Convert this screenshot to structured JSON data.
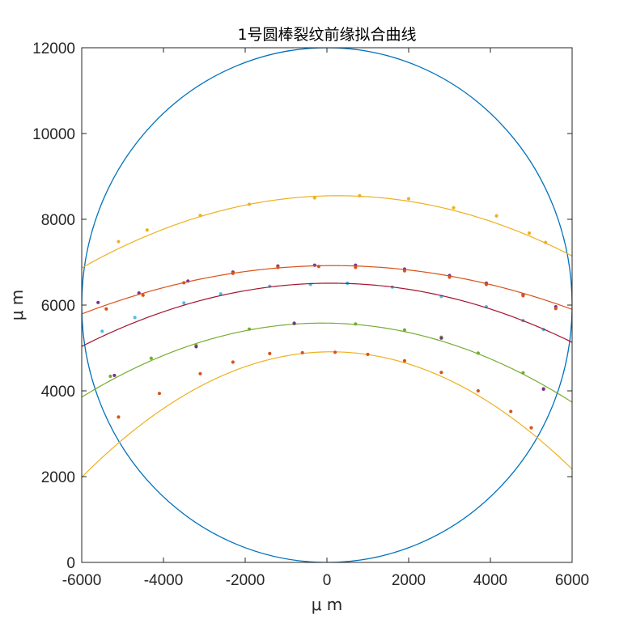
{
  "chart_data": {
    "type": "scatter",
    "title": "1号圆棒裂纹前缘拟合曲线",
    "xlabel": "μ m",
    "ylabel": "μ m",
    "xlim": [
      -6000,
      6000
    ],
    "ylim": [
      0,
      12000
    ],
    "xticks": [
      -6000,
      -4000,
      -2000,
      0,
      2000,
      4000,
      6000
    ],
    "yticks": [
      0,
      2000,
      4000,
      6000,
      8000,
      10000,
      12000
    ],
    "xtick_labels": [
      "-6000",
      "-4000",
      "-2000",
      "0",
      "2000",
      "4000",
      "6000"
    ],
    "ytick_labels": [
      "0",
      "2000",
      "4000",
      "6000",
      "8000",
      "10000",
      "12000"
    ],
    "grid": false,
    "legend": "none",
    "circle": {
      "cx": 0,
      "cy": 6000,
      "r": 6000,
      "color": "#0072BD"
    },
    "series": [
      {
        "color": "#EDB120",
        "curve": {
          "a": -4.28e-05,
          "h": 270,
          "k": 8550,
          "x_min": -6000,
          "x_max": 6000
        },
        "points": [
          [
            -5100,
            7480
          ],
          [
            -4400,
            7750
          ],
          [
            -3100,
            8090
          ],
          [
            -1900,
            8350
          ],
          [
            -300,
            8500
          ],
          [
            800,
            8550
          ],
          [
            2000,
            8480
          ],
          [
            3100,
            8270
          ],
          [
            4150,
            8080
          ],
          [
            4950,
            7680
          ],
          [
            5350,
            7460
          ]
        ]
      },
      {
        "color": "#7E2F8E",
        "points": [
          [
            -5600,
            6060
          ],
          [
            -4600,
            6280
          ],
          [
            -3400,
            6560
          ],
          [
            -2300,
            6770
          ],
          [
            -1200,
            6910
          ],
          [
            -300,
            6930
          ],
          [
            700,
            6930
          ],
          [
            1900,
            6840
          ],
          [
            3000,
            6690
          ],
          [
            3900,
            6510
          ],
          [
            4800,
            6240
          ],
          [
            5600,
            5960
          ]
        ]
      },
      {
        "color": "#D95319",
        "curve": {
          "a": -2.98e-05,
          "h": 150,
          "k": 6920,
          "x_min": -6000,
          "x_max": 6000
        },
        "points": [
          [
            -5400,
            5910
          ],
          [
            -4500,
            6230
          ],
          [
            -3500,
            6520
          ],
          [
            -2300,
            6740
          ],
          [
            -1200,
            6880
          ],
          [
            -200,
            6900
          ],
          [
            700,
            6880
          ],
          [
            1900,
            6800
          ],
          [
            3000,
            6650
          ],
          [
            3900,
            6480
          ],
          [
            4800,
            6220
          ],
          [
            5600,
            5920
          ]
        ]
      },
      {
        "color": "#4DBEEE",
        "points": [
          [
            -5500,
            5390
          ],
          [
            -4700,
            5710
          ],
          [
            -3500,
            6050
          ],
          [
            -2600,
            6260
          ],
          [
            -1400,
            6440
          ],
          [
            -400,
            6480
          ],
          [
            500,
            6510
          ],
          [
            1600,
            6420
          ],
          [
            2800,
            6200
          ],
          [
            3900,
            5960
          ],
          [
            4800,
            5640
          ],
          [
            5300,
            5430
          ]
        ]
      },
      {
        "color": "#A2142F",
        "curve": {
          "a": -3.96e-05,
          "h": 100,
          "k": 6510,
          "x_min": -6000,
          "x_max": 6000
        }
      },
      {
        "color": "#77AC30",
        "curve": {
          "a": -4.96e-05,
          "h": -100,
          "k": 5580,
          "x_min": -6000,
          "x_max": 6000
        },
        "points": [
          [
            -5300,
            4340
          ],
          [
            -4300,
            4760
          ],
          [
            -3200,
            5060
          ],
          [
            -1900,
            5440
          ],
          [
            -800,
            5580
          ],
          [
            700,
            5560
          ],
          [
            1900,
            5420
          ],
          [
            2800,
            5250
          ],
          [
            3700,
            4880
          ],
          [
            4800,
            4420
          ],
          [
            5300,
            4050
          ]
        ]
      },
      {
        "color": "#EDB120",
        "curve": {
          "a": -7.86e-05,
          "h": 100,
          "k": 4910,
          "x_min": -6000,
          "x_max": 6000
        }
      },
      {
        "color": "#D95319",
        "points": [
          [
            -5100,
            3390
          ],
          [
            -4100,
            3940
          ],
          [
            -3100,
            4400
          ],
          [
            -2300,
            4670
          ],
          [
            -1400,
            4870
          ],
          [
            -600,
            4890
          ],
          [
            200,
            4900
          ],
          [
            1000,
            4850
          ],
          [
            1900,
            4700
          ],
          [
            2800,
            4430
          ],
          [
            3700,
            4000
          ],
          [
            4500,
            3520
          ],
          [
            5000,
            3140
          ]
        ]
      },
      {
        "color": "#7E2F8E",
        "points": [
          [
            -5200,
            4360
          ],
          [
            -3200,
            5030
          ],
          [
            -800,
            5570
          ],
          [
            2800,
            5230
          ],
          [
            5300,
            4040
          ]
        ]
      }
    ]
  }
}
